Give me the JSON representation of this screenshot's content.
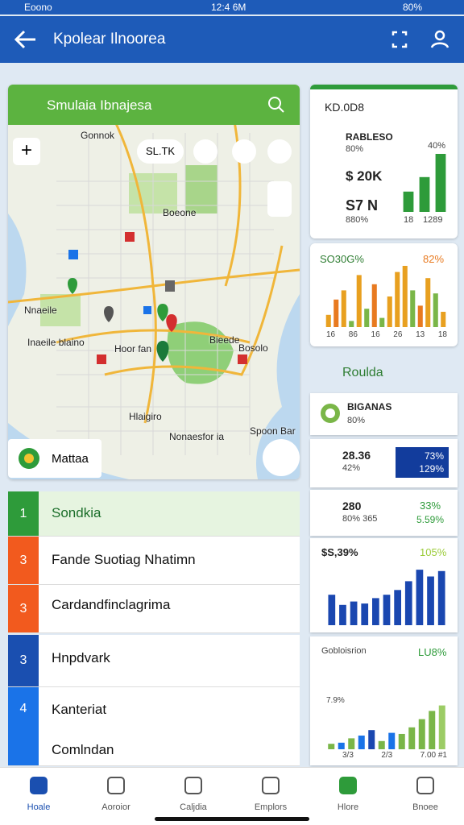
{
  "status_bar": {
    "carrier": "Eoono",
    "time": "12:4 6M",
    "battery": "80%"
  },
  "app_bar": {
    "title": "Kpolear Ilnoorea"
  },
  "map": {
    "search": "Smulaia Ibnajesa",
    "chip": "SL.TK",
    "card": "Mattaa",
    "labels": [
      "Gonnok",
      "Boeone",
      "Nnaeile",
      "Inaeile blaino",
      "Hoor fan",
      "Bieede",
      "Bosolo",
      "Hlaigiro",
      "Nonaesfor ia",
      "Spoon Bar"
    ]
  },
  "list": {
    "rows": [
      {
        "number": 1,
        "text": "Sondkia"
      },
      {
        "number": 3,
        "text": "Fande Suotiag Nhatimn"
      },
      {
        "number": 3,
        "text": "Cardandfinclagrima"
      },
      {
        "number": 3,
        "text": "Hnpdvark"
      },
      {
        "number": 4,
        "text": "Kanteriat"
      },
      {
        "text": "Comlndan"
      }
    ]
  },
  "panels": {
    "summary": {
      "title": "KD.0D8",
      "rows": [
        {
          "label": "RABLESO",
          "sub": "80%"
        },
        {
          "label": "$ 20K"
        },
        {
          "label": "S7 N",
          "sub": "880%"
        }
      ],
      "top": "40%",
      "axis": [
        "18",
        "1289"
      ],
      "chart": {
        "values": [
          35,
          60,
          100
        ],
        "color": "#2e9b3a",
        "ylim": [
          0,
          100
        ]
      }
    },
    "mixed": {
      "left": "SO30G%",
      "right": "82%",
      "axis": [
        "16",
        "86",
        "16",
        "26",
        "13",
        "18"
      ],
      "chart": {
        "values": [
          20,
          45,
          60,
          10,
          85,
          30,
          70,
          15,
          50,
          90,
          100,
          60,
          35,
          80,
          55,
          25
        ],
        "colors": [
          "#e8a020",
          "#e87a20",
          "#e8a020",
          "#7ab648",
          "#e8a020",
          "#7ab648",
          "#e87a20",
          "#7ab648",
          "#e8a020",
          "#e8a020",
          "#e8a020",
          "#7ab648",
          "#e87a20",
          "#e8a020",
          "#7ab648",
          "#e8a020"
        ],
        "ylim": [
          0,
          100
        ]
      }
    },
    "section": {
      "title": "Rouldа"
    },
    "item1": {
      "label": "BIGANAS",
      "sub": "80%"
    },
    "item2": {
      "label": "28.36",
      "sub": "42%",
      "badge_top": "73%",
      "badge_bottom": "129%"
    },
    "item3": {
      "label": "280",
      "sub": "80% 365",
      "right_top": "33%",
      "right_bottom": "5.59%"
    },
    "blue": {
      "left": "$S,39%",
      "right": "105%",
      "chart": {
        "values": [
          45,
          30,
          35,
          32,
          40,
          45,
          52,
          65,
          82,
          72,
          80
        ],
        "color": "#1a47b0",
        "ylim": [
          0,
          100
        ]
      }
    },
    "last": {
      "left": "Gobloisrion",
      "right": "LU8%",
      "small": "7.9%",
      "axis": [
        "3/3",
        "2/3",
        "7.00 #1"
      ],
      "chart": {
        "values": [
          10,
          12,
          20,
          25,
          35,
          15,
          30,
          28,
          40,
          55,
          70,
          80
        ],
        "colors": [
          "#7ab648",
          "#1a73e8",
          "#7ab648",
          "#1a73e8",
          "#1a47b0",
          "#7ab648",
          "#1a73e8",
          "#7ab648",
          "#7ab648",
          "#7ab648",
          "#7ab648",
          "#9ccc65"
        ],
        "ylim": [
          0,
          100
        ]
      }
    }
  },
  "nav": {
    "items": [
      "Hoale",
      "Aoroior",
      "Caljdia",
      "Emplors",
      "Hlore",
      "Bnoee"
    ]
  }
}
